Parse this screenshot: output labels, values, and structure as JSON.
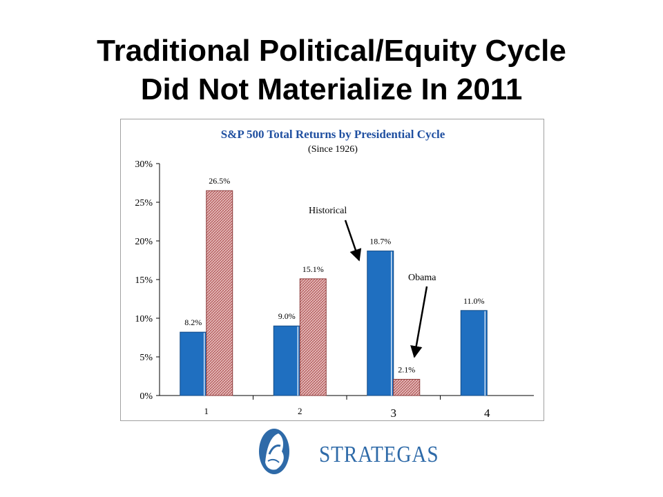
{
  "slide": {
    "title_line1": "Traditional Political/Equity Cycle",
    "title_line2": "Did Not Materialize In 2011"
  },
  "chart_data": {
    "type": "bar",
    "title": "S&P 500 Total Returns by Presidential Cycle",
    "subtitle": "(Since 1926)",
    "categories": [
      "1",
      "2",
      "3",
      "4"
    ],
    "series": [
      {
        "name": "Historical",
        "values": [
          8.2,
          9.0,
          18.7,
          11.0
        ],
        "color": "#1f6fc0"
      },
      {
        "name": "Obama",
        "values": [
          26.5,
          15.1,
          2.1,
          null
        ],
        "color": "#c98a8a"
      }
    ],
    "data_labels": [
      [
        "8.2%",
        "9.0%",
        "18.7%",
        "11.0%"
      ],
      [
        "26.5%",
        "15.1%",
        "2.1%",
        ""
      ]
    ],
    "y_ticks": [
      "0%",
      "5%",
      "10%",
      "15%",
      "20%",
      "25%",
      "30%"
    ],
    "ylim": [
      0,
      30
    ],
    "annotations": [
      {
        "text": "Historical",
        "points_to": "series 1, category 3"
      },
      {
        "text": "Obama",
        "points_to": "series 2, category 3"
      }
    ],
    "title_color": "#1f4fa0",
    "legend": "none",
    "grid": false
  },
  "logo": {
    "text": "STRATEGAS",
    "color": "#2e6aa8"
  }
}
